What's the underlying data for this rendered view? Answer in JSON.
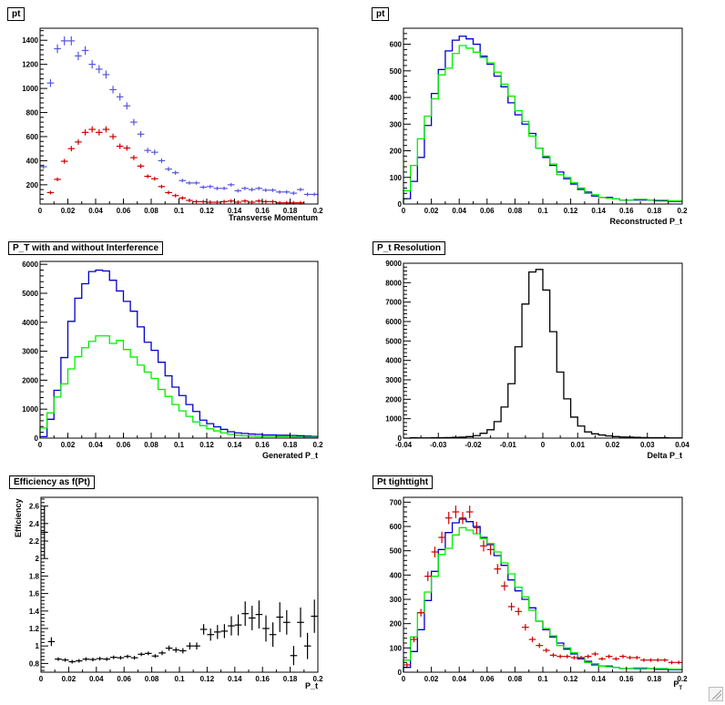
{
  "chart_data": [
    {
      "id": "pt1",
      "type": "scatter",
      "title": "pt",
      "xlabel": "Transverse Momentum",
      "ylabel": "",
      "xlim": [
        0,
        0.2
      ],
      "ylim": [
        40,
        1500
      ],
      "xticks": [
        "0",
        "0.02",
        "0.04",
        "0.06",
        "0.08",
        "0.1",
        "0.12",
        "0.14",
        "0.16",
        "0.18",
        "0.2"
      ],
      "xtick_values": [
        0,
        0.02,
        0.04,
        0.06,
        0.08,
        0.1,
        0.12,
        0.14,
        0.16,
        0.18,
        0.2
      ],
      "yticks": [
        "200",
        "400",
        "600",
        "800",
        "1000",
        "1200",
        "1400"
      ],
      "ytick_values": [
        200,
        400,
        600,
        800,
        1000,
        1200,
        1400
      ],
      "series": [
        {
          "name": "blue",
          "style": "errorbar",
          "color": "#5555dd",
          "binwidth": 0.005,
          "x": [
            0.0025,
            0.0075,
            0.0125,
            0.0175,
            0.0225,
            0.0275,
            0.0325,
            0.0375,
            0.0425,
            0.0475,
            0.0525,
            0.0575,
            0.0625,
            0.0675,
            0.0725,
            0.0775,
            0.0825,
            0.0875,
            0.0925,
            0.0975,
            0.1025,
            0.1075,
            0.1125,
            0.1175,
            0.1225,
            0.1275,
            0.1325,
            0.1375,
            0.1425,
            0.1475,
            0.1525,
            0.1575,
            0.1625,
            0.1675,
            0.1725,
            0.1775,
            0.1825,
            0.1875,
            0.1925,
            0.1975
          ],
          "values": [
            350,
            1045,
            1330,
            1395,
            1395,
            1270,
            1315,
            1200,
            1160,
            1115,
            990,
            930,
            855,
            720,
            620,
            485,
            470,
            400,
            330,
            300,
            235,
            215,
            215,
            180,
            185,
            170,
            170,
            200,
            150,
            170,
            160,
            170,
            155,
            155,
            140,
            140,
            130,
            160,
            120,
            120
          ]
        },
        {
          "name": "red",
          "style": "errorbar",
          "color": "#cc0000",
          "binwidth": 0.005,
          "x": [
            0.0025,
            0.0075,
            0.0125,
            0.0175,
            0.0225,
            0.0275,
            0.0325,
            0.0375,
            0.0425,
            0.0475,
            0.0525,
            0.0575,
            0.0625,
            0.0675,
            0.0725,
            0.0775,
            0.0825,
            0.0875,
            0.0925,
            0.0975,
            0.1025,
            0.1075,
            0.1125,
            0.1175,
            0.1225,
            0.1275,
            0.1325,
            0.1375,
            0.1425,
            0.1475,
            0.1525,
            0.1575,
            0.1625,
            0.1675,
            0.1725,
            0.1775,
            0.1825,
            0.1875
          ],
          "values": [
            30,
            135,
            245,
            395,
            500,
            555,
            635,
            660,
            635,
            660,
            600,
            520,
            505,
            425,
            355,
            270,
            250,
            185,
            135,
            110,
            90,
            70,
            60,
            60,
            55,
            55,
            60,
            65,
            55,
            65,
            55,
            65,
            60,
            60,
            50,
            50,
            50,
            50
          ]
        }
      ]
    },
    {
      "id": "pt2",
      "type": "line",
      "title": "pt",
      "xlabel": "Reconstructed P_t",
      "ylabel": "",
      "xlim": [
        0,
        0.2
      ],
      "ylim": [
        0,
        660
      ],
      "xticks": [
        "0",
        "0.02",
        "0.04",
        "0.06",
        "0.08",
        "0.1",
        "0.12",
        "0.14",
        "0.16",
        "0.18",
        "0.2"
      ],
      "xtick_values": [
        0,
        0.02,
        0.04,
        0.06,
        0.08,
        0.1,
        0.12,
        0.14,
        0.16,
        0.18,
        0.2
      ],
      "yticks": [
        "0",
        "100",
        "200",
        "300",
        "400",
        "500",
        "600"
      ],
      "ytick_values": [
        0,
        100,
        200,
        300,
        400,
        500,
        600
      ],
      "series": [
        {
          "name": "blue",
          "style": "step",
          "color": "#0000cc",
          "binwidth": 0.005,
          "values": [
            20,
            85,
            175,
            295,
            415,
            505,
            575,
            615,
            630,
            620,
            600,
            555,
            525,
            480,
            440,
            380,
            335,
            300,
            265,
            210,
            175,
            145,
            120,
            95,
            75,
            55,
            45,
            30,
            25,
            25,
            20,
            15,
            15,
            15,
            15,
            15,
            12,
            12,
            10,
            10
          ]
        },
        {
          "name": "green",
          "style": "step",
          "color": "#00ee00",
          "binwidth": 0.005,
          "values": [
            50,
            145,
            245,
            330,
            395,
            485,
            510,
            565,
            595,
            585,
            570,
            550,
            530,
            495,
            450,
            405,
            350,
            310,
            255,
            210,
            180,
            150,
            110,
            100,
            80,
            60,
            40,
            35,
            25,
            22,
            20,
            15,
            15,
            18,
            18,
            15,
            15,
            15,
            12,
            12
          ]
        }
      ]
    },
    {
      "id": "ptinterf",
      "type": "line",
      "title": "P_T with and without Interference",
      "xlabel": "Generated P_t",
      "ylabel": "",
      "xlim": [
        0,
        0.2
      ],
      "ylim": [
        0,
        6100
      ],
      "xticks": [
        "0",
        "0.02",
        "0.04",
        "0.06",
        "0.08",
        "0.1",
        "0.12",
        "0.14",
        "0.16",
        "0.18",
        "0.2"
      ],
      "xtick_values": [
        0,
        0.02,
        0.04,
        0.06,
        0.08,
        0.1,
        0.12,
        0.14,
        0.16,
        0.18,
        0.2
      ],
      "yticks": [
        "0",
        "1000",
        "2000",
        "3000",
        "4000",
        "5000",
        "6000"
      ],
      "ytick_values": [
        0,
        1000,
        2000,
        3000,
        4000,
        5000,
        6000
      ],
      "series": [
        {
          "name": "blue",
          "style": "step",
          "color": "#0000cc",
          "binwidth": 0.005,
          "values": [
            50,
            650,
            1650,
            2780,
            4030,
            4830,
            5330,
            5750,
            5800,
            5770,
            5450,
            5080,
            4720,
            4380,
            3840,
            3310,
            3030,
            2620,
            2150,
            1760,
            1470,
            1160,
            920,
            620,
            500,
            390,
            300,
            220,
            180,
            160,
            140,
            130,
            110,
            110,
            100,
            100,
            90,
            80,
            70,
            60
          ]
        },
        {
          "name": "green",
          "style": "step",
          "color": "#00ee00",
          "binwidth": 0.005,
          "values": [
            350,
            870,
            1420,
            1870,
            2390,
            2810,
            3120,
            3340,
            3530,
            3530,
            3270,
            3370,
            3060,
            2800,
            2520,
            2280,
            2060,
            1680,
            1440,
            1160,
            940,
            750,
            560,
            430,
            320,
            250,
            180,
            130,
            100,
            80,
            70,
            60,
            60,
            60,
            50,
            50,
            40,
            40,
            30,
            30
          ]
        }
      ]
    },
    {
      "id": "resolution",
      "type": "line",
      "title": "P_t Resolution",
      "xlabel": "Delta P_t",
      "ylabel": "",
      "xlim": [
        -0.04,
        0.04
      ],
      "ylim": [
        0,
        9000
      ],
      "xticks": [
        "-0.04",
        "-0.03",
        "-0.02",
        "-0.01",
        "0",
        "0.01",
        "0.02",
        "0.03",
        "0.04"
      ],
      "xtick_values": [
        -0.04,
        -0.03,
        -0.02,
        -0.01,
        0,
        0.01,
        0.02,
        0.03,
        0.04
      ],
      "yticks": [
        "0",
        "1000",
        "2000",
        "3000",
        "4000",
        "5000",
        "6000",
        "7000",
        "8000",
        "9000"
      ],
      "ytick_values": [
        0,
        1000,
        2000,
        3000,
        4000,
        5000,
        6000,
        7000,
        8000,
        9000
      ],
      "series": [
        {
          "name": "black",
          "style": "step",
          "color": "#000000",
          "binwidth": 0.002,
          "xstart": -0.04,
          "values": [
            0,
            20,
            10,
            10,
            20,
            20,
            30,
            40,
            50,
            80,
            130,
            250,
            430,
            850,
            1600,
            2800,
            4700,
            6900,
            8550,
            8680,
            7620,
            5480,
            3400,
            2020,
            1080,
            620,
            320,
            220,
            160,
            110,
            80,
            60,
            50,
            40,
            30,
            20,
            20,
            20,
            10,
            10
          ]
        }
      ]
    },
    {
      "id": "efficiency",
      "type": "scatter",
      "title": "Efficiency as f(Pt)",
      "xlabel": "P_t",
      "ylabel": "Efficiency",
      "xlim": [
        0,
        0.2
      ],
      "ylim": [
        0.7,
        2.7
      ],
      "xticks": [
        "0",
        "0.02",
        "0.04",
        "0.06",
        "0.08",
        "0.1",
        "0.12",
        "0.14",
        "0.16",
        "0.18",
        "0.2"
      ],
      "xtick_values": [
        0,
        0.02,
        0.04,
        0.06,
        0.08,
        0.1,
        0.12,
        0.14,
        0.16,
        0.18,
        0.2
      ],
      "yticks": [
        "0.8",
        "1",
        "1.2",
        "1.4",
        "1.6",
        "1.8",
        "2",
        "2.2",
        "2.4",
        "2.6"
      ],
      "ytick_values": [
        0.8,
        1,
        1.2,
        1.4,
        1.6,
        1.8,
        2,
        2.2,
        2.4,
        2.6
      ],
      "series": [
        {
          "name": "black",
          "style": "errorbar",
          "color": "#000000",
          "binwidth": 0.005,
          "x": [
            0.0025,
            0.0075,
            0.0125,
            0.0175,
            0.0225,
            0.0275,
            0.0325,
            0.0375,
            0.0425,
            0.0475,
            0.0525,
            0.0575,
            0.0625,
            0.0675,
            0.0725,
            0.0775,
            0.0825,
            0.0875,
            0.0925,
            0.0975,
            0.1025,
            0.1075,
            0.1125,
            0.1175,
            0.1225,
            0.1275,
            0.1325,
            0.1375,
            0.1425,
            0.1475,
            0.1525,
            0.1575,
            0.1625,
            0.1675,
            0.1725,
            0.1775,
            0.1825,
            0.1875,
            0.1925,
            0.1975
          ],
          "values": [
            2.3,
            1.05,
            0.85,
            0.84,
            0.82,
            0.83,
            0.85,
            0.845,
            0.855,
            0.85,
            0.87,
            0.865,
            0.88,
            0.865,
            0.905,
            0.915,
            0.885,
            0.92,
            0.975,
            0.955,
            0.945,
            1.0,
            1.0,
            1.19,
            1.13,
            1.16,
            1.17,
            1.23,
            1.24,
            1.37,
            1.32,
            1.36,
            1.2,
            1.13,
            1.33,
            1.27,
            0.89,
            1.27,
            1.0,
            1.34
          ],
          "errors": [
            0.3,
            0.05,
            0.02,
            0.02,
            0.02,
            0.02,
            0.02,
            0.02,
            0.02,
            0.02,
            0.02,
            0.02,
            0.02,
            0.02,
            0.02,
            0.02,
            0.02,
            0.025,
            0.03,
            0.03,
            0.03,
            0.04,
            0.04,
            0.06,
            0.07,
            0.08,
            0.08,
            0.11,
            0.12,
            0.14,
            0.14,
            0.16,
            0.15,
            0.14,
            0.17,
            0.14,
            0.11,
            0.17,
            0.15,
            0.19
          ]
        }
      ]
    },
    {
      "id": "tighttight",
      "type": "line",
      "title": "Pt tighttight",
      "xlabel": "P",
      "xlabel_sub": "T",
      "ylabel": "",
      "xlim": [
        0,
        0.2
      ],
      "ylim": [
        0,
        720
      ],
      "xticks": [
        "0",
        "0.02",
        "0.04",
        "0.06",
        "0.08",
        "0.1",
        "0.12",
        "0.14",
        "0.16",
        "0.18",
        "0.2"
      ],
      "xtick_values": [
        0,
        0.02,
        0.04,
        0.06,
        0.08,
        0.1,
        0.12,
        0.14,
        0.16,
        0.18,
        0.2
      ],
      "yticks": [
        "0",
        "100",
        "200",
        "300",
        "400",
        "500",
        "600",
        "700"
      ],
      "ytick_values": [
        0,
        100,
        200,
        300,
        400,
        500,
        600,
        700
      ],
      "series": [
        {
          "name": "blue",
          "style": "step",
          "color": "#0000cc",
          "binwidth": 0.005,
          "values": [
            20,
            85,
            175,
            295,
            415,
            505,
            575,
            615,
            630,
            620,
            600,
            555,
            525,
            480,
            440,
            380,
            335,
            300,
            265,
            210,
            175,
            145,
            120,
            95,
            75,
            55,
            45,
            30,
            25,
            25,
            20,
            15,
            15,
            15,
            15,
            15,
            12,
            12,
            10,
            10
          ]
        },
        {
          "name": "green",
          "style": "step",
          "color": "#00ee00",
          "binwidth": 0.005,
          "values": [
            50,
            145,
            245,
            330,
            395,
            485,
            510,
            565,
            595,
            585,
            570,
            550,
            530,
            495,
            450,
            405,
            350,
            310,
            255,
            210,
            180,
            150,
            110,
            100,
            80,
            60,
            40,
            35,
            25,
            22,
            20,
            15,
            15,
            18,
            18,
            15,
            15,
            15,
            12,
            12
          ]
        },
        {
          "name": "red",
          "style": "errorbar",
          "color": "#cc0000",
          "binwidth": 0.005,
          "x": [
            0.0025,
            0.0075,
            0.0125,
            0.0175,
            0.0225,
            0.0275,
            0.0325,
            0.0375,
            0.0425,
            0.0475,
            0.0525,
            0.0575,
            0.0625,
            0.0675,
            0.0725,
            0.0775,
            0.0825,
            0.0875,
            0.0925,
            0.0975,
            0.1025,
            0.1075,
            0.1125,
            0.1175,
            0.1225,
            0.1275,
            0.1325,
            0.1375,
            0.1425,
            0.1475,
            0.1525,
            0.1575,
            0.1625,
            0.1675,
            0.1725,
            0.1775,
            0.1825,
            0.1875,
            0.1925,
            0.1975
          ],
          "values": [
            30,
            135,
            245,
            395,
            495,
            555,
            635,
            660,
            635,
            660,
            595,
            520,
            505,
            425,
            355,
            270,
            250,
            185,
            135,
            110,
            90,
            70,
            65,
            65,
            60,
            60,
            65,
            75,
            55,
            65,
            55,
            65,
            60,
            60,
            50,
            50,
            50,
            50,
            40,
            40
          ]
        }
      ]
    }
  ]
}
